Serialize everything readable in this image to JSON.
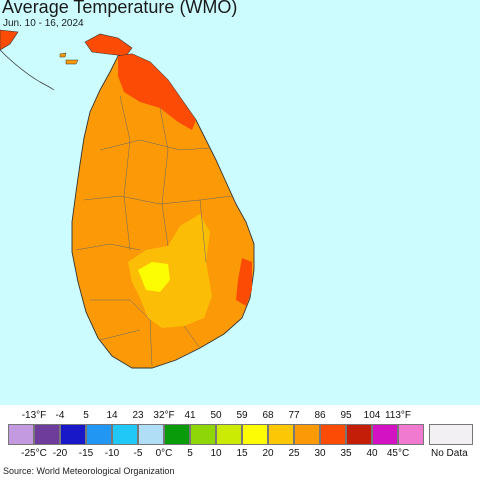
{
  "header": {
    "title": "Average Temperature (WMO)",
    "subtitle": "Jun. 10 - 16, 2024"
  },
  "map": {
    "region": "Sri Lanka",
    "colors": {
      "ocean": "#cdfcfe",
      "land_main": "#fb9a06",
      "land_cooler": "#fcbd06",
      "land_coolest": "#fcfc02",
      "land_warm": "#fb4b05",
      "border": "#555555"
    }
  },
  "legend": {
    "fahrenheit_labels": [
      "-13°F",
      "-4",
      "5",
      "14",
      "23",
      "32°F",
      "41",
      "50",
      "59",
      "68",
      "77",
      "86",
      "95",
      "104",
      "113°F"
    ],
    "celsius_labels": [
      "-25°C",
      "-20",
      "-15",
      "-10",
      "-5",
      "0°C",
      "5",
      "10",
      "15",
      "20",
      "25",
      "30",
      "35",
      "40",
      "45°C"
    ],
    "colors": [
      "#c39ae0",
      "#6e3d9b",
      "#1818c8",
      "#2196f3",
      "#20c8f8",
      "#b0def7",
      "#0a9b0a",
      "#8ed608",
      "#cbeb05",
      "#fdfc05",
      "#fcc806",
      "#fb9a06",
      "#fb4b05",
      "#c41d08",
      "#d312c3",
      "#f07ad0"
    ],
    "no_data_label": "No Data",
    "no_data_color": "#f2f0f2"
  },
  "footer": {
    "source": "Source: World Meteorological Organization"
  }
}
